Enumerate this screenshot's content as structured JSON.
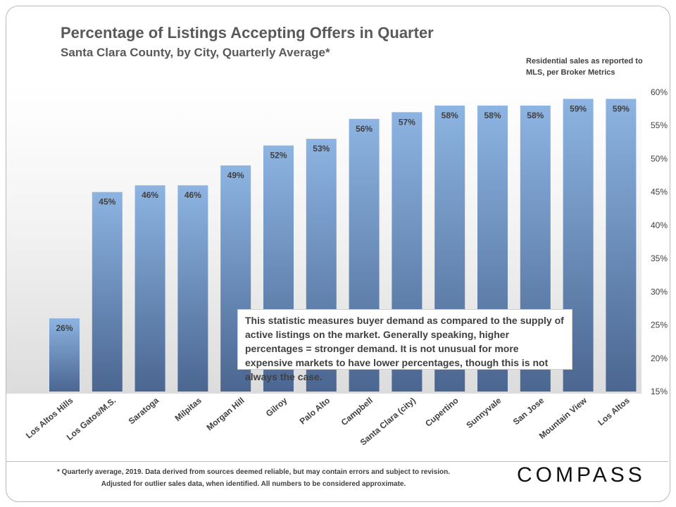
{
  "header": {
    "title": "Percentage of Listings Accepting Offers in Quarter",
    "subtitle": "Santa Clara County, by City, Quarterly Average*",
    "source_note": "Residential sales as reported to MLS, per Broker Metrics"
  },
  "note_box": "This statistic measures buyer demand as compared to the supply of active listings on the market. Generally speaking, higher percentages = stronger demand. It is not unusual for more expensive markets to have lower percentages, though this is not always the case.",
  "footer": {
    "footnote": "* Quarterly average, 2019. Data derived from sources deemed reliable, but may contain errors and subject to revision. Adjusted for outlier sales data, when identified. All numbers to be considered approximate.",
    "logo": "COMPASS"
  },
  "colors": {
    "bar_top": "#8db4e2",
    "bar_bottom": "#4a6691",
    "label": "#404040",
    "axis_text": "#404040"
  },
  "chart_data": {
    "type": "bar",
    "title": "Percentage of Listings Accepting Offers in Quarter",
    "subtitle": "Santa Clara County, by City, Quarterly Average*",
    "categories": [
      "Los Altos Hills",
      "Los Gatos/M.S.",
      "Saratoga",
      "Milpitas",
      "Morgan Hill",
      "Gilroy",
      "Palo Alto",
      "Campbell",
      "Santa Clara (city)",
      "Cupertino",
      "Sunnyvale",
      "San Jose",
      "Mountain View",
      "Los Altos"
    ],
    "values": [
      26,
      45,
      46,
      46,
      49,
      52,
      53,
      56,
      57,
      58,
      58,
      58,
      59,
      59
    ],
    "data_labels": [
      "26%",
      "45%",
      "46%",
      "46%",
      "49%",
      "52%",
      "53%",
      "56%",
      "57%",
      "58%",
      "58%",
      "58%",
      "59%",
      "59%"
    ],
    "ylim": [
      15,
      60
    ],
    "y_ticks": [
      15,
      20,
      25,
      30,
      35,
      40,
      45,
      50,
      55,
      60
    ],
    "y_tick_labels": [
      "15%",
      "20%",
      "25%",
      "30%",
      "35%",
      "40%",
      "45%",
      "50%",
      "55%",
      "60%"
    ],
    "y_axis_position": "right",
    "grid": false,
    "xlabel": "",
    "ylabel": ""
  }
}
